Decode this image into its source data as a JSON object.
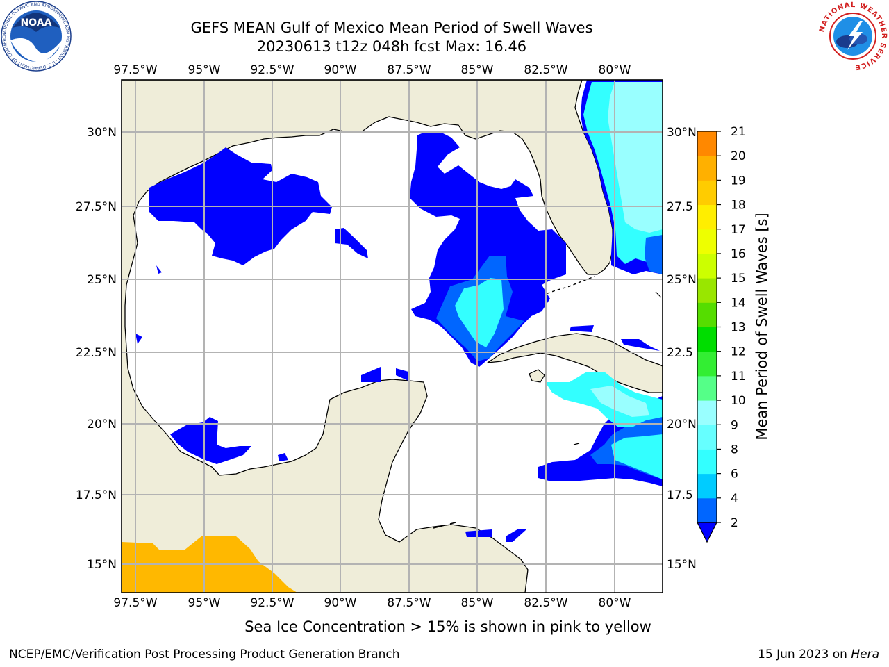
{
  "header": {
    "title_line1": "GEFS MEAN Gulf of Mexico Mean Period of Swell Waves",
    "title_line2": "20230613 t12z 048h fcst   Max: 16.46"
  },
  "map": {
    "lon_labels": [
      "97.5°W",
      "95°W",
      "92.5°W",
      "90°W",
      "87.5°W",
      "85°W",
      "82.5°W",
      "80°W"
    ],
    "lat_labels": [
      "30°N",
      "27.5°N",
      "25°N",
      "22.5°N",
      "20°N",
      "17.5°N",
      "15°N"
    ],
    "lat_labels_right": [
      "30°N",
      "27.5",
      "25°N",
      "22.5",
      "20°N",
      "17.5",
      "15°N"
    ],
    "colors": {
      "land": "#efedd9",
      "ocean": "#ffffff",
      "coast": "#000000",
      "grid": "#b3b3b3"
    }
  },
  "colorbar": {
    "title": "Mean Period of Swell Waves [s]",
    "ticks": [
      "2",
      "4",
      "6",
      "8",
      "9",
      "10",
      "11",
      "12",
      "13",
      "14",
      "15",
      "16",
      "17",
      "18",
      "19",
      "20",
      "21"
    ],
    "colors": [
      "#0000ff",
      "#0066ff",
      "#00ccff",
      "#33ffff",
      "#66ffff",
      "#99ffff",
      "#55ff88",
      "#33ee33",
      "#00dd00",
      "#55dd00",
      "#99e600",
      "#ccff00",
      "#eeff00",
      "#ffee00",
      "#ffcc00",
      "#ffb000",
      "#ff8800",
      "#ff6600",
      "#ff3300",
      "#ff0000"
    ]
  },
  "footer": {
    "caption": "Sea Ice Concentration > 15% is shown in pink to yellow",
    "credit": "NCEP/EMC/Verification Post Processing Product Generation Branch",
    "date": "15 Jun 2023 on",
    "machine": "Hera"
  },
  "logos": {
    "noaa_text": "NOAA",
    "noaa_ring": "NATIONAL OCEANIC AND ATMOSPHERIC ADMINISTRATION · U.S. DEPARTMENT OF COMMERCE",
    "nws_ring": "NATIONAL WEATHER SERVICE"
  }
}
